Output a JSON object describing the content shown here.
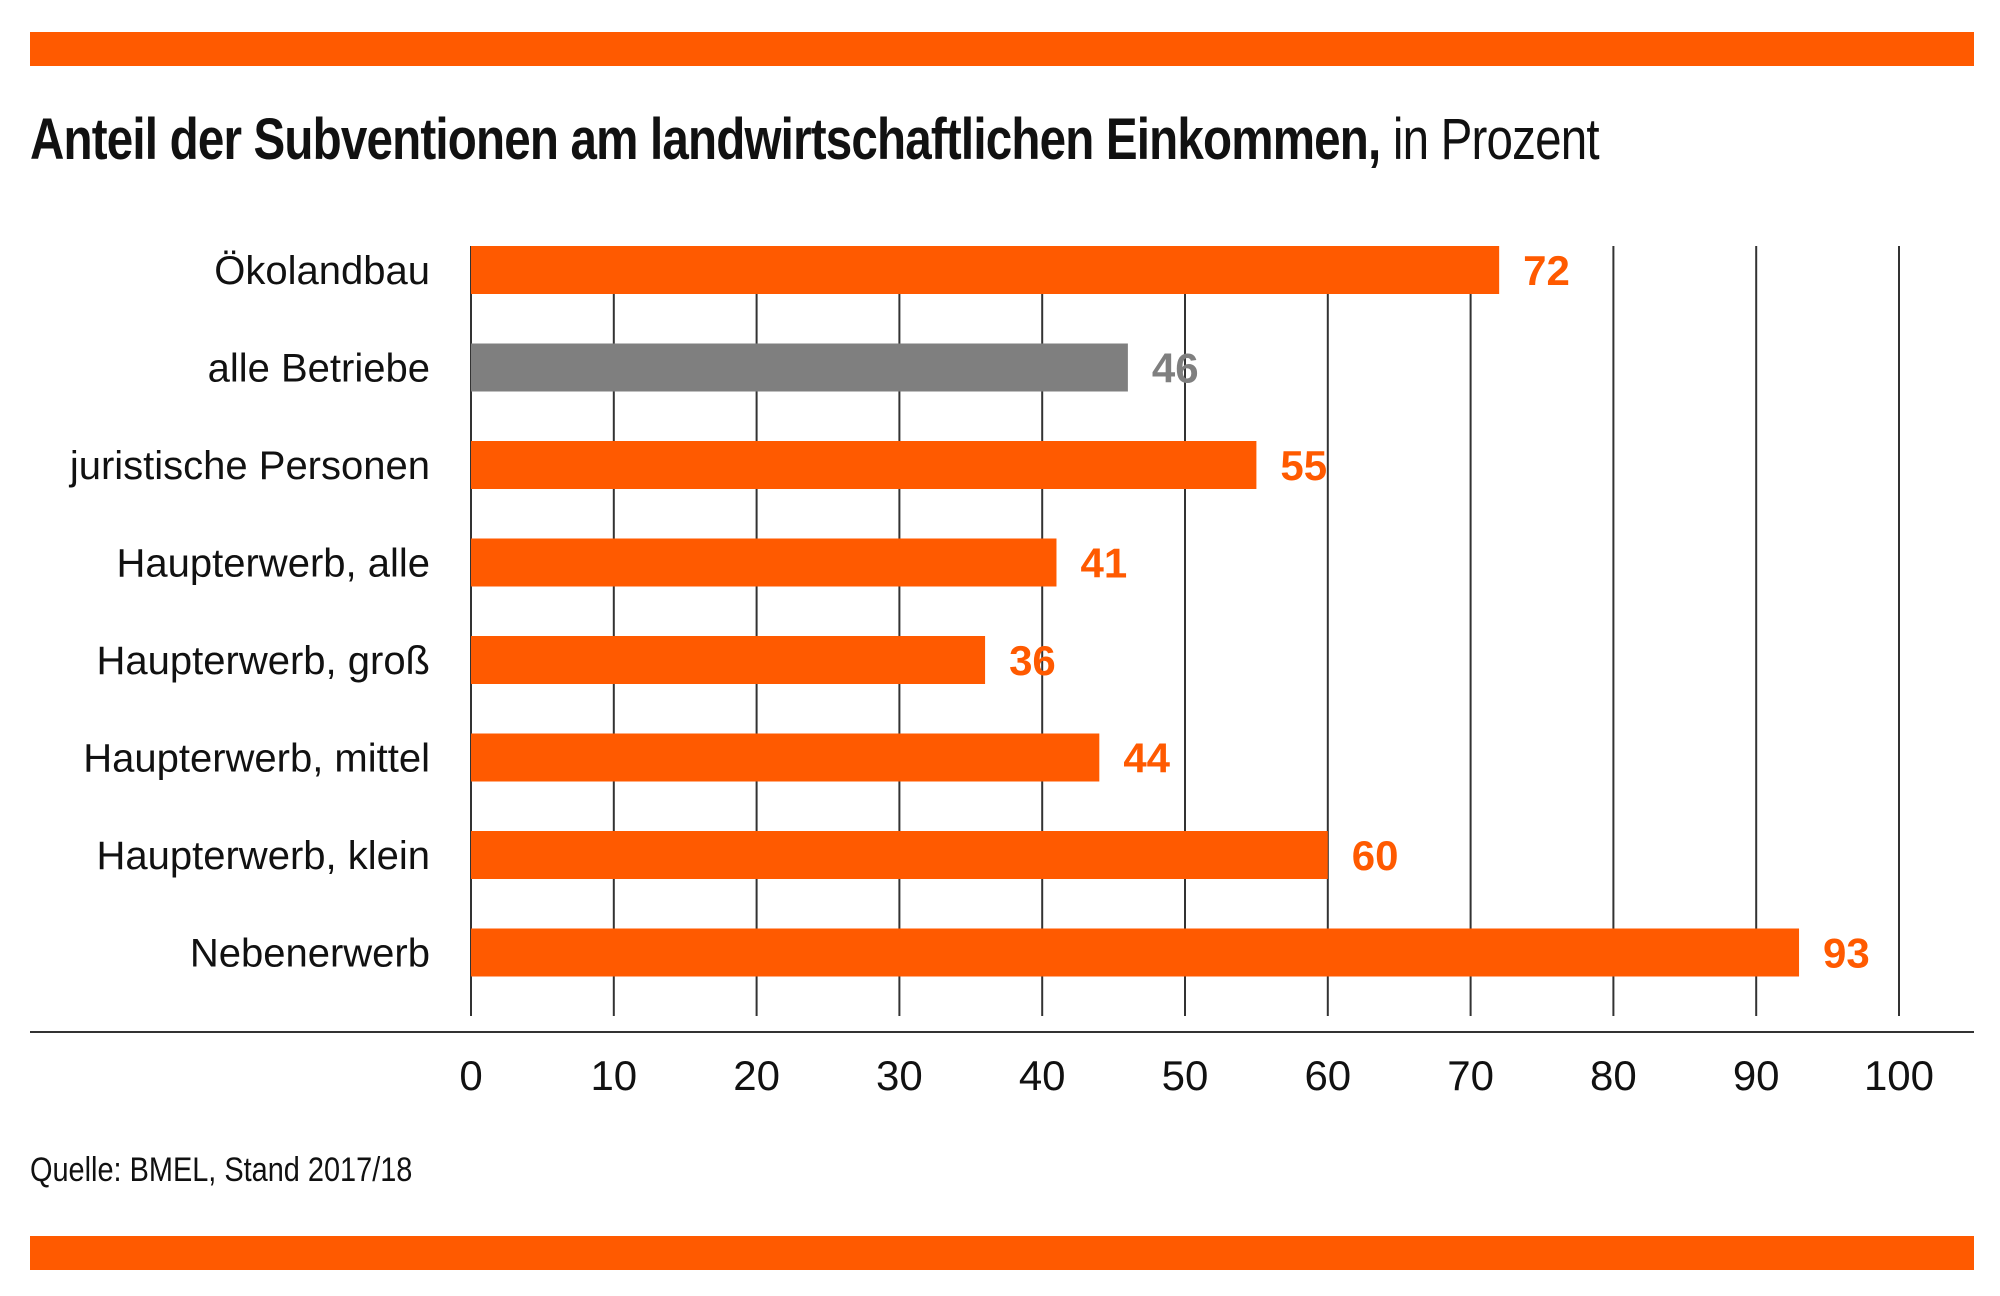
{
  "colors": {
    "accent": "#ff5a00",
    "highlight": "#7f7f7f",
    "grid": "#333333",
    "text": "#111111"
  },
  "header": {
    "title_bold": "Anteil der Subventionen am landwirtschaftlichen Einkommen,",
    "title_light": "in Prozent"
  },
  "footer": {
    "source": "Quelle: BMEL, Stand 2017/18"
  },
  "chart_data": {
    "type": "bar",
    "orientation": "horizontal",
    "title": "Anteil der Subventionen am landwirtschaftlichen Einkommen, in Prozent",
    "categories": [
      "Ökolandbau",
      "alle Betriebe",
      "juristische Personen",
      "Haupterwerb, alle",
      "Haupterwerb, groß",
      "Haupterwerb, mittel",
      "Haupterwerb, klein",
      "Nebenerwerb"
    ],
    "values": [
      72,
      46,
      55,
      41,
      36,
      44,
      60,
      93
    ],
    "highlighted_category": "alle Betriebe",
    "xlim": [
      0,
      100
    ],
    "xticks": [
      0,
      10,
      20,
      30,
      40,
      50,
      60,
      70,
      80,
      90,
      100
    ],
    "grid": true,
    "data_labels": true
  }
}
